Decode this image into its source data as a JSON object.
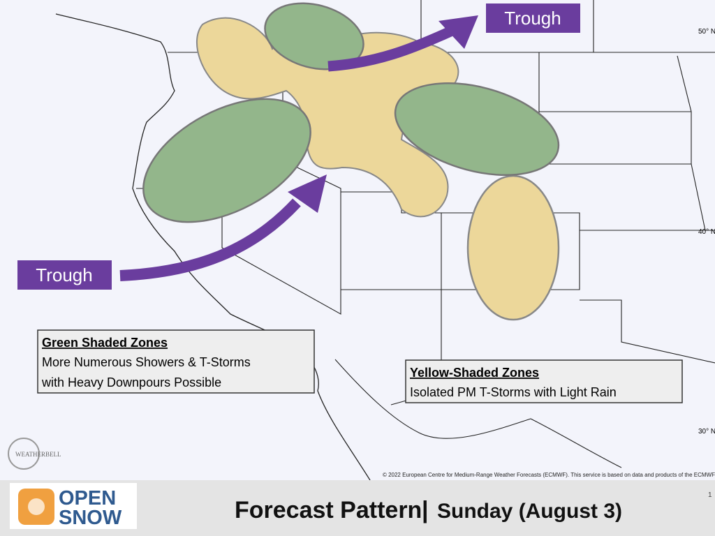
{
  "map": {
    "labels": {
      "trough_west": "Trough",
      "trough_north": "Trough"
    },
    "latitudes": [
      "50° N",
      "40° N",
      "30° N"
    ],
    "legend_green": {
      "title": "Green Shaded Zones",
      "lines": [
        "More Numerous Showers & T-Storms",
        "with Heavy Downpours Possible"
      ]
    },
    "legend_yellow": {
      "title": "Yellow-Shaded Zones",
      "lines": [
        "Isolated PM T-Storms with Light Rain"
      ]
    },
    "watermark": "WEATHERBELL",
    "copyright": "© 2022 European Centre for Medium-Range Weather Forecasts (ECMWF). This service is based on data and products of the ECMWF"
  },
  "footer": {
    "logo_top": "OPEN",
    "logo_bottom": "SNOW",
    "title": "Forecast Pattern",
    "separator": "|",
    "subtitle": "Sunday (August 3)",
    "page": "1"
  }
}
